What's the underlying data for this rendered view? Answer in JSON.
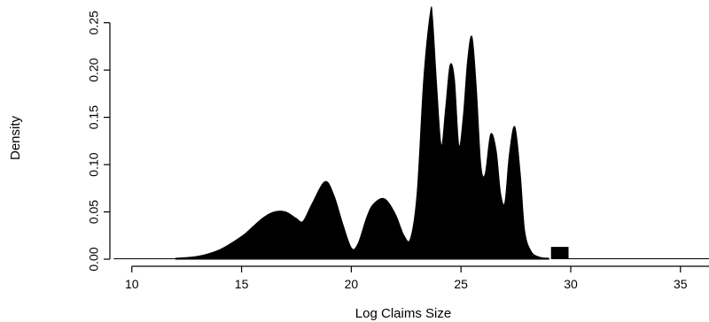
{
  "chart_data": {
    "type": "area",
    "title": "",
    "xlabel": "Log Claims Size",
    "ylabel": "Density",
    "xlim": [
      9,
      36.3
    ],
    "ylim": [
      0,
      0.26
    ],
    "xticks": [
      10,
      15,
      20,
      25,
      30,
      35
    ],
    "yticks": [
      0.0,
      0.05,
      0.1,
      0.15,
      0.2,
      0.25
    ],
    "xtick_labels": [
      "10",
      "15",
      "20",
      "25",
      "30",
      "35"
    ],
    "ytick_labels": [
      "0.00",
      "0.05",
      "0.10",
      "0.15",
      "0.20",
      "0.25"
    ],
    "grid": false,
    "fill_color": "#000000",
    "series": [
      {
        "x": [
          12.0,
          13.0,
          14.0,
          15.0,
          15.5,
          16.0,
          16.5,
          17.0,
          17.5,
          17.8,
          18.2,
          18.8,
          19.2,
          19.6,
          20.0,
          20.3,
          20.7,
          21.0,
          21.5,
          22.0,
          22.4,
          22.7,
          23.0,
          23.3,
          23.6,
          23.7,
          23.9,
          24.1,
          24.3,
          24.5,
          24.7,
          24.9,
          25.1,
          25.3,
          25.5,
          25.7,
          25.9,
          26.1,
          26.35,
          26.6,
          26.8,
          27.0,
          27.2,
          27.45,
          27.7,
          27.9,
          28.2,
          28.6,
          29.0
        ],
        "y": [
          0.001,
          0.003,
          0.01,
          0.024,
          0.034,
          0.044,
          0.05,
          0.05,
          0.043,
          0.04,
          0.058,
          0.082,
          0.068,
          0.038,
          0.012,
          0.016,
          0.044,
          0.058,
          0.064,
          0.048,
          0.025,
          0.022,
          0.07,
          0.19,
          0.26,
          0.255,
          0.18,
          0.12,
          0.16,
          0.205,
          0.19,
          0.12,
          0.15,
          0.21,
          0.235,
          0.18,
          0.1,
          0.09,
          0.132,
          0.115,
          0.07,
          0.06,
          0.11,
          0.14,
          0.09,
          0.03,
          0.008,
          0.002,
          0.001
        ]
      }
    ],
    "step_segment": {
      "x": [
        29.1,
        29.9
      ],
      "y": 0.013
    },
    "tail": {
      "x": [
        29.9,
        36.3
      ],
      "y": 0.001
    }
  }
}
